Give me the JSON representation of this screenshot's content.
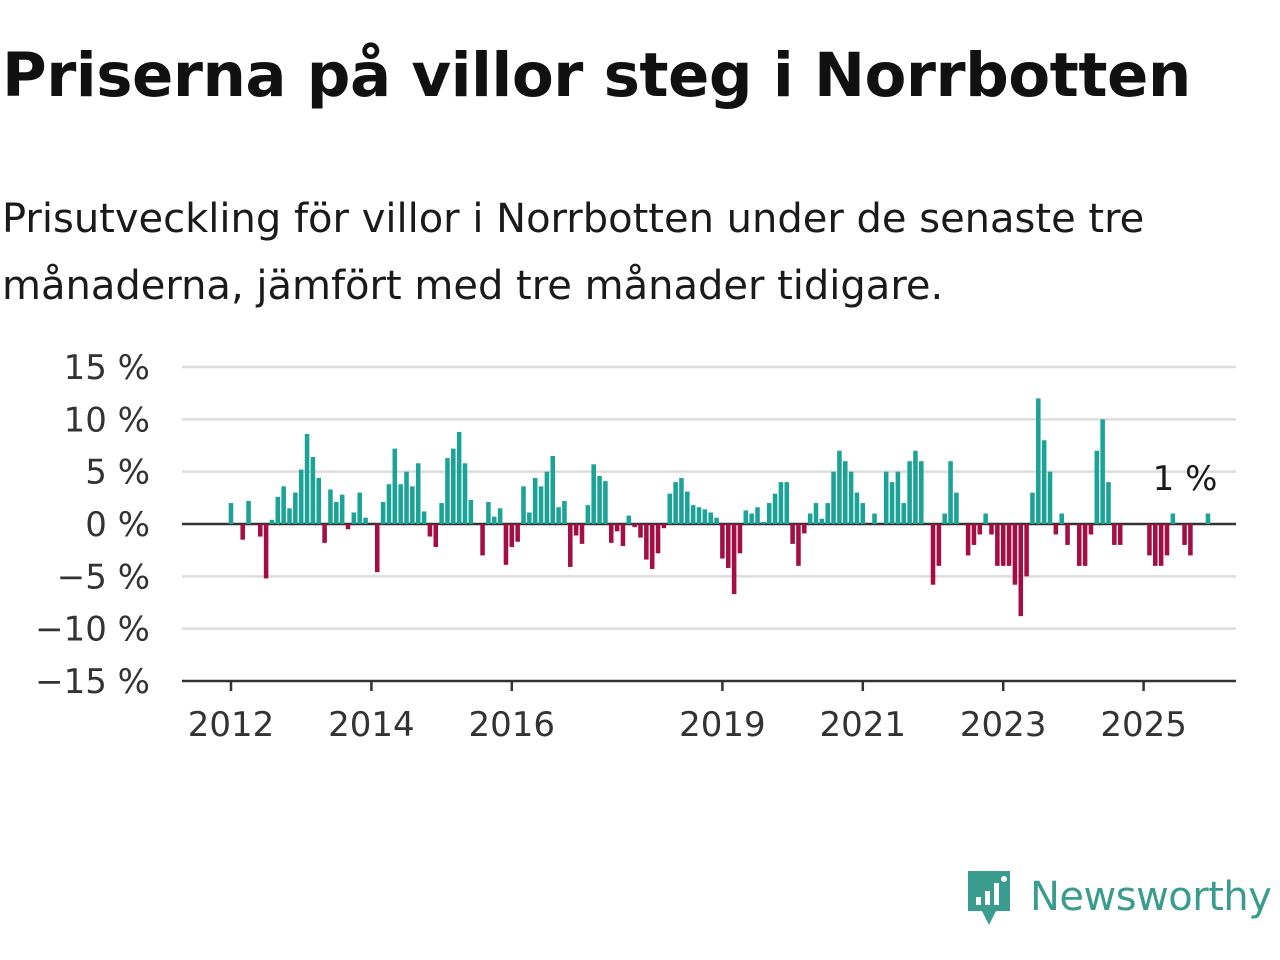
{
  "title": "Priserna på villor steg i Norrbotten",
  "subtitle": "Prisutveckling för villor i Norrbotten under de senaste tre månaderna, jämfört med tre månader tidigare.",
  "brand": {
    "name": "Newsworthy",
    "icon": "newsworthy-logo-icon"
  },
  "colors": {
    "positive": "#1aa396",
    "negative": "#a50e45",
    "grid": "#dddddd",
    "axis": "#333333",
    "brand": "#3a9b8f"
  },
  "chart_data": {
    "type": "bar",
    "ylim": [
      -15,
      15
    ],
    "yticks": [
      15,
      10,
      5,
      0,
      -5,
      -10,
      -15
    ],
    "ytick_labels": [
      "15 %",
      "10 %",
      "5 %",
      "0 %",
      "−5 %",
      "−10 %",
      "−15 %"
    ],
    "x_tick_years": [
      2012,
      2014,
      2016,
      2019,
      2021,
      2023,
      2025
    ],
    "x_tick_labels": [
      "2012",
      "2014",
      "2016",
      "2019",
      "2021",
      "2023",
      "2025"
    ],
    "grid": true,
    "annotation": "1 %",
    "start": "2012-01",
    "values": [
      2,
      0,
      -1.5,
      2.2,
      0,
      -1.2,
      -5.2,
      0.4,
      2.6,
      3.6,
      1.5,
      3,
      5.2,
      8.6,
      6.4,
      4.4,
      -1.8,
      3.3,
      2.1,
      2.8,
      -0.5,
      1.1,
      3,
      0.6,
      0,
      -4.6,
      2.1,
      3.8,
      7.2,
      3.8,
      5,
      3.6,
      5.8,
      1.2,
      -1.2,
      -2.2,
      2,
      6.3,
      7.2,
      8.8,
      5.8,
      2.3,
      0,
      -3,
      2.1,
      0.7,
      1.5,
      -3.9,
      -2.2,
      -1.7,
      3.6,
      1.1,
      4.4,
      3.6,
      5,
      6.5,
      1.6,
      2.2,
      -4.1,
      -1.1,
      -1.9,
      1.8,
      5.7,
      4.6,
      4.1,
      -1.8,
      -0.7,
      -2.1,
      0.8,
      -0.3,
      -1.3,
      -3.4,
      -4.3,
      -2.8,
      -0.4,
      2.9,
      4,
      4.4,
      3.1,
      1.8,
      1.6,
      1.4,
      1.1,
      0.6,
      -3.3,
      -4.2,
      -6.7,
      -2.8,
      1.3,
      1,
      1.6,
      0.2,
      2,
      2.9,
      4,
      4,
      -1.9,
      -4,
      -0.9,
      1,
      2,
      0.5,
      2,
      5,
      7,
      6,
      5,
      3,
      2,
      0,
      1,
      0,
      5,
      4,
      5,
      2,
      6,
      7,
      6,
      0,
      -5.8,
      -4,
      1,
      6,
      3,
      0,
      -3,
      -2,
      -1,
      1,
      -1,
      -4,
      -4,
      -4,
      -5.8,
      -8.8,
      -5,
      3,
      12,
      8,
      5,
      -1,
      1,
      -2,
      0,
      -4,
      -4,
      -1,
      7,
      10,
      4,
      -2,
      -2,
      0,
      0,
      0,
      0,
      -3,
      -4,
      -4,
      -3,
      1,
      0,
      -2,
      -3,
      0,
      0,
      1
    ]
  }
}
